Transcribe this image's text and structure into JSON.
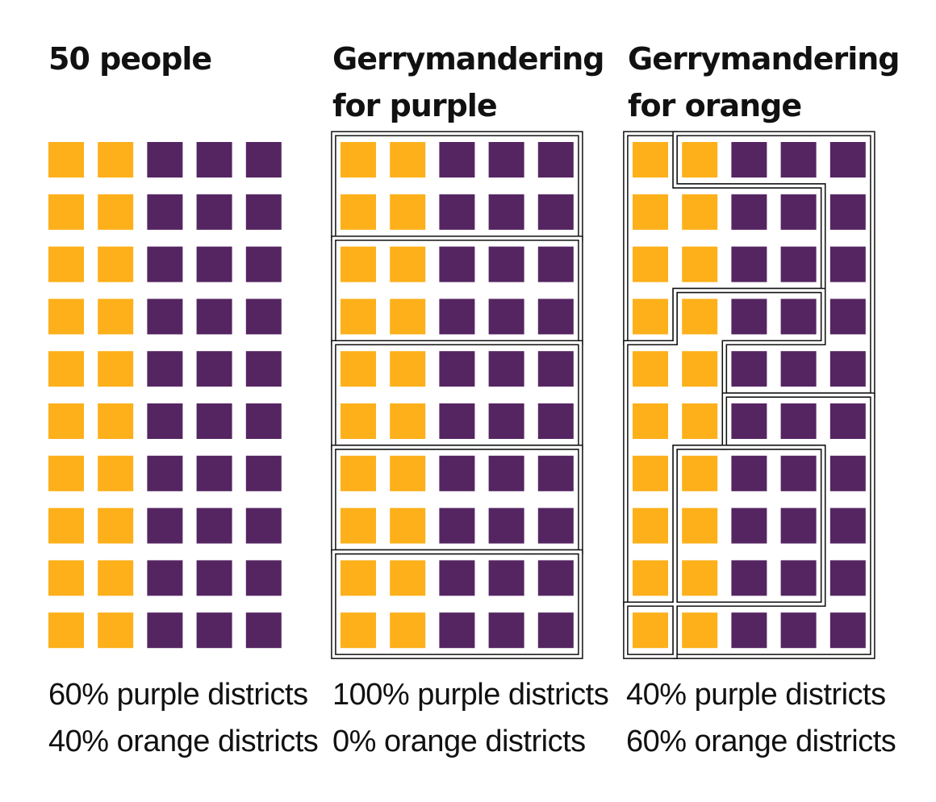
{
  "colors": {
    "orange": "#fdb01a",
    "purple": "#552562",
    "border": "#111111",
    "text": "#111111"
  },
  "grid": {
    "rows": 10,
    "cols": 5,
    "pattern": [
      "orange",
      "orange",
      "purple",
      "purple",
      "purple"
    ]
  },
  "panels": [
    {
      "id": "all",
      "title_lines": [
        "50 people",
        ""
      ],
      "stats": [
        "60% purple districts",
        "40% orange districts"
      ],
      "districts": []
    },
    {
      "id": "purple",
      "title_lines": [
        "Gerrymandering",
        "for purple"
      ],
      "stats": [
        "100% purple districts",
        "0% orange districts"
      ],
      "districts": [
        {
          "winner": "purple",
          "cells": [
            [
              0,
              0
            ],
            [
              0,
              1
            ],
            [
              0,
              2
            ],
            [
              0,
              3
            ],
            [
              0,
              4
            ],
            [
              1,
              0
            ],
            [
              1,
              1
            ],
            [
              1,
              2
            ],
            [
              1,
              3
            ],
            [
              1,
              4
            ]
          ]
        },
        {
          "winner": "purple",
          "cells": [
            [
              2,
              0
            ],
            [
              2,
              1
            ],
            [
              2,
              2
            ],
            [
              2,
              3
            ],
            [
              2,
              4
            ],
            [
              3,
              0
            ],
            [
              3,
              1
            ],
            [
              3,
              2
            ],
            [
              3,
              3
            ],
            [
              3,
              4
            ]
          ]
        },
        {
          "winner": "purple",
          "cells": [
            [
              4,
              0
            ],
            [
              4,
              1
            ],
            [
              4,
              2
            ],
            [
              4,
              3
            ],
            [
              4,
              4
            ],
            [
              5,
              0
            ],
            [
              5,
              1
            ],
            [
              5,
              2
            ],
            [
              5,
              3
            ],
            [
              5,
              4
            ]
          ]
        },
        {
          "winner": "purple",
          "cells": [
            [
              6,
              0
            ],
            [
              6,
              1
            ],
            [
              6,
              2
            ],
            [
              6,
              3
            ],
            [
              6,
              4
            ],
            [
              7,
              0
            ],
            [
              7,
              1
            ],
            [
              7,
              2
            ],
            [
              7,
              3
            ],
            [
              7,
              4
            ]
          ]
        },
        {
          "winner": "purple",
          "cells": [
            [
              8,
              0
            ],
            [
              8,
              1
            ],
            [
              8,
              2
            ],
            [
              8,
              3
            ],
            [
              8,
              4
            ],
            [
              9,
              0
            ],
            [
              9,
              1
            ],
            [
              9,
              2
            ],
            [
              9,
              3
            ],
            [
              9,
              4
            ]
          ]
        }
      ]
    },
    {
      "id": "orange",
      "title_lines": [
        "Gerrymandering",
        "for orange"
      ],
      "stats": [
        "40% purple districts",
        "60% orange districts"
      ],
      "districts": [
        {
          "winner": "orange",
          "cells": [
            [
              0,
              0
            ],
            [
              1,
              0
            ],
            [
              1,
              1
            ],
            [
              1,
              2
            ],
            [
              1,
              3
            ],
            [
              2,
              0
            ],
            [
              2,
              1
            ],
            [
              2,
              2
            ],
            [
              2,
              3
            ],
            [
              3,
              0
            ]
          ]
        },
        {
          "winner": "purple",
          "cells": [
            [
              0,
              1
            ],
            [
              0,
              2
            ],
            [
              0,
              3
            ],
            [
              0,
              4
            ],
            [
              1,
              4
            ],
            [
              2,
              4
            ],
            [
              3,
              4
            ],
            [
              4,
              2
            ],
            [
              4,
              3
            ],
            [
              4,
              4
            ]
          ]
        },
        {
          "winner": "orange",
          "cells": [
            [
              3,
              1
            ],
            [
              3,
              2
            ],
            [
              3,
              3
            ],
            [
              4,
              0
            ],
            [
              4,
              1
            ],
            [
              5,
              0
            ],
            [
              5,
              1
            ],
            [
              6,
              0
            ],
            [
              7,
              0
            ],
            [
              8,
              0
            ]
          ]
        },
        {
          "winner": "purple",
          "cells": [
            [
              5,
              2
            ],
            [
              5,
              3
            ],
            [
              5,
              4
            ],
            [
              6,
              4
            ],
            [
              7,
              4
            ],
            [
              8,
              4
            ],
            [
              9,
              1
            ],
            [
              9,
              2
            ],
            [
              9,
              3
            ],
            [
              9,
              4
            ]
          ]
        },
        {
          "winner": "orange",
          "cells": [
            [
              6,
              1
            ],
            [
              6,
              2
            ],
            [
              6,
              3
            ],
            [
              7,
              1
            ],
            [
              7,
              2
            ],
            [
              7,
              3
            ],
            [
              8,
              1
            ],
            [
              8,
              2
            ],
            [
              8,
              3
            ],
            [
              9,
              0
            ]
          ]
        }
      ]
    }
  ]
}
